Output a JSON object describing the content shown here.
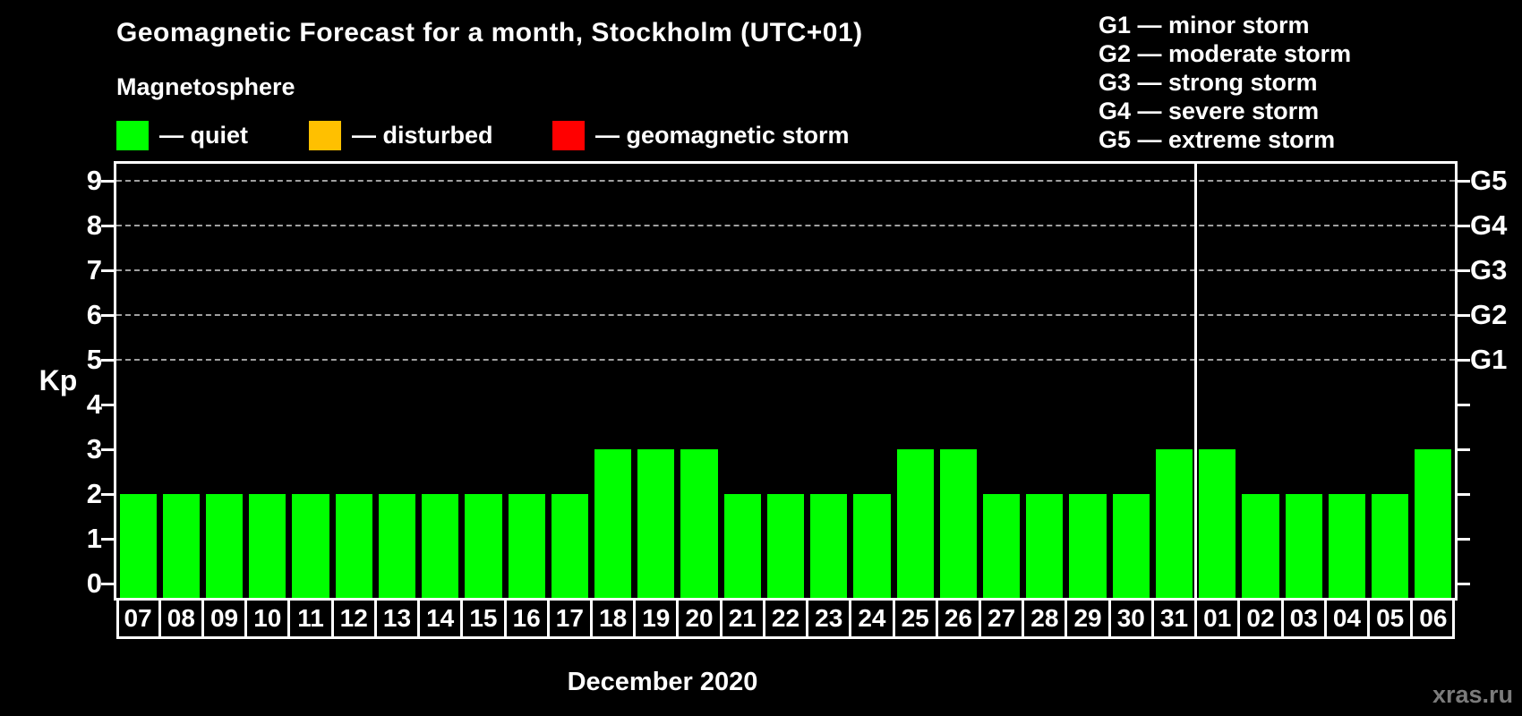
{
  "title": "Geomagnetic Forecast for a month, Stockholm (UTC+01)",
  "legend": {
    "heading": "Magnetosphere",
    "items": [
      {
        "name": "quiet",
        "label": "— quiet",
        "color": "#00ff00"
      },
      {
        "name": "disturbed",
        "label": "— disturbed",
        "color": "#ffc000"
      },
      {
        "name": "geomagnetic-storm",
        "label": "— geomagnetic storm",
        "color": "#ff0000"
      }
    ]
  },
  "storm_scale_legend": [
    "G1 — minor storm",
    "G2 — moderate storm",
    "G3 — strong storm",
    "G4 — severe storm",
    "G5 — extreme storm"
  ],
  "chart_data": {
    "type": "bar",
    "categories": [
      "07",
      "08",
      "09",
      "10",
      "11",
      "12",
      "13",
      "14",
      "15",
      "16",
      "17",
      "18",
      "19",
      "20",
      "21",
      "22",
      "23",
      "24",
      "25",
      "26",
      "27",
      "28",
      "29",
      "30",
      "31",
      "01",
      "02",
      "03",
      "04",
      "05",
      "06"
    ],
    "values": [
      2,
      2,
      2,
      2,
      2,
      2,
      2,
      2,
      2,
      2,
      2,
      3,
      3,
      3,
      2,
      2,
      2,
      2,
      3,
      3,
      2,
      2,
      2,
      2,
      3,
      3,
      2,
      2,
      2,
      2,
      3
    ],
    "bar_state": "quiet",
    "bar_color": "#00ff00",
    "ylabel": "Kp",
    "yticks": [
      "0",
      "1",
      "2",
      "3",
      "4",
      "5",
      "6",
      "7",
      "8",
      "9"
    ],
    "ylim": [
      0,
      9
    ],
    "gridlines_at": [
      5,
      6,
      7,
      8,
      9
    ],
    "grid": "dashed horizontal at storm levels only",
    "right_axis": [
      {
        "label": "G1",
        "kp": 5
      },
      {
        "label": "G2",
        "kp": 6
      },
      {
        "label": "G3",
        "kp": 7
      },
      {
        "label": "G4",
        "kp": 8
      },
      {
        "label": "G5",
        "kp": 9
      }
    ],
    "month_separator_after_category": "31",
    "xlabel": "December 2020"
  },
  "watermark": "xras.ru",
  "colors": {
    "background": "#000000",
    "text": "#ffffff",
    "grid": "#a0a0a0",
    "axis": "#ffffff",
    "watermark": "#7b7b7b"
  }
}
